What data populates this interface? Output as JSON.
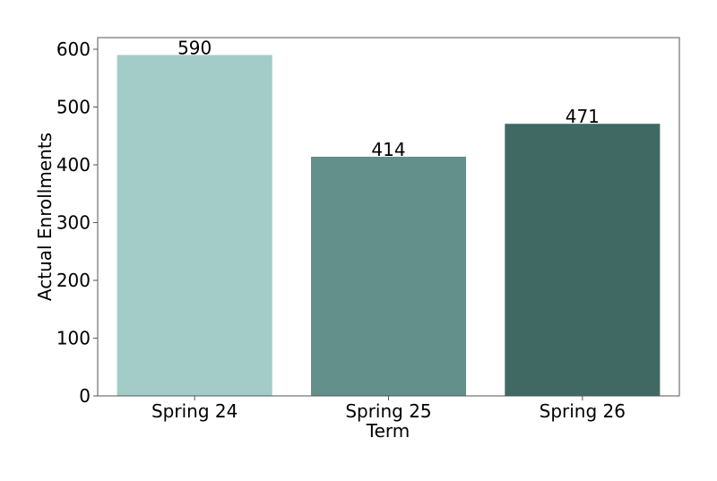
{
  "chart_data": {
    "type": "bar",
    "title": "",
    "xlabel": "Term",
    "ylabel": "Actual Enrollments",
    "categories": [
      "Spring 24",
      "Spring 25",
      "Spring 26"
    ],
    "values": [
      590,
      414,
      471
    ],
    "data_labels": [
      "590",
      "414",
      "471"
    ],
    "colors": [
      "#a3cbc7",
      "#64908b",
      "#416964"
    ],
    "ylim": [
      0,
      620
    ],
    "yticks": [
      0,
      100,
      200,
      300,
      400,
      500,
      600
    ],
    "grid": false,
    "legend": "none"
  }
}
